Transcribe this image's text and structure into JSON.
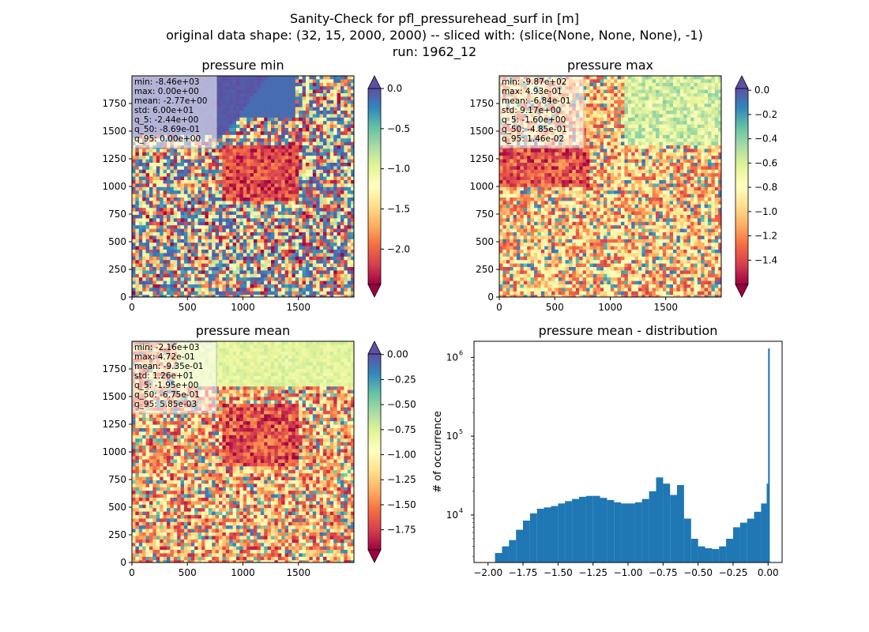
{
  "figure": {
    "title_lines": [
      "Sanity-Check for pfl_pressurehead_surf in [m]",
      "original data shape: (32, 15, 2000, 2000) -- sliced with: (slice(None, None, None), -1)",
      "run: 1962_12"
    ]
  },
  "chart_data": [
    {
      "type": "heatmap",
      "title": "pressure min",
      "xticks": [
        0,
        500,
        1000,
        1500
      ],
      "yticks": [
        0,
        250,
        500,
        750,
        1000,
        1250,
        1500,
        1750
      ],
      "xlim": [
        0,
        2000
      ],
      "ylim": [
        0,
        2000
      ],
      "colormap": "Spectral",
      "extend": "both",
      "clim": [
        -2.44,
        0.0
      ],
      "colorbar_ticks": [
        "0.0",
        "−0.5",
        "−1.0",
        "−1.5",
        "−2.0"
      ],
      "colorbar_tick_values": [
        0.0,
        -0.5,
        -1.0,
        -1.5,
        -2.0
      ],
      "stats": [
        "min: -8.46e+03",
        "max: 0.00e+00",
        "mean: -2.77e+00",
        "std: 6.00e+01",
        "q_5: -2.44e+00",
        "q_50: -8.69e-01",
        "q_95: 0.00e+00"
      ]
    },
    {
      "type": "heatmap",
      "title": "pressure max",
      "xticks": [
        0,
        500,
        1000,
        1500
      ],
      "yticks": [
        0,
        250,
        500,
        750,
        1000,
        1250,
        1500,
        1750
      ],
      "xlim": [
        0,
        2000
      ],
      "ylim": [
        0,
        2000
      ],
      "colormap": "Spectral",
      "extend": "both",
      "clim": [
        -1.6,
        0.0146
      ],
      "colorbar_ticks": [
        "0.0",
        "−0.2",
        "−0.4",
        "−0.6",
        "−0.8",
        "−1.0",
        "−1.2",
        "−1.4"
      ],
      "colorbar_tick_values": [
        0.0,
        -0.2,
        -0.4,
        -0.6,
        -0.8,
        -1.0,
        -1.2,
        -1.4
      ],
      "stats": [
        "min: -9.87e+02",
        "max: 4.93e-01",
        "mean: -6.84e-01",
        "std: 9.17e+00",
        "q_5: -1.60e+00",
        "q_50: -4.85e-01",
        "q_95: 1.46e-02"
      ]
    },
    {
      "type": "heatmap",
      "title": "pressure mean",
      "xticks": [
        0,
        500,
        1000,
        1500
      ],
      "yticks": [
        0,
        250,
        500,
        750,
        1000,
        1250,
        1500,
        1750
      ],
      "xlim": [
        0,
        2000
      ],
      "ylim": [
        0,
        2000
      ],
      "colormap": "Spectral",
      "extend": "both",
      "clim": [
        -1.95,
        0.00585
      ],
      "colorbar_ticks": [
        "0.00",
        "−0.25",
        "−0.50",
        "−0.75",
        "−1.00",
        "−1.25",
        "−1.50",
        "−1.75"
      ],
      "colorbar_tick_values": [
        0.0,
        -0.25,
        -0.5,
        -0.75,
        -1.0,
        -1.25,
        -1.5,
        -1.75
      ],
      "stats": [
        "min: -2.16e+03",
        "max: 4.72e-01",
        "mean: -9.35e-01",
        "std: 1.26e+01",
        "q_5: -1.95e+00",
        "q_50: -6.75e-01",
        "q_95: 5.85e-03"
      ]
    },
    {
      "type": "bar",
      "title": "pressure mean - distribution",
      "ylabel": "# of occurrence",
      "yscale": "log",
      "xlim": [
        -2.1,
        0.1
      ],
      "ylim": [
        2500,
        1600000
      ],
      "xticks": [
        -2.0,
        -1.75,
        -1.5,
        -1.25,
        -1.0,
        -0.75,
        -0.5,
        -0.25,
        0.0
      ],
      "xtick_labels": [
        "−2.00",
        "−1.75",
        "−1.50",
        "−1.25",
        "−1.00",
        "−0.75",
        "−0.50",
        "−0.25",
        "0.00"
      ],
      "yticks": [
        10000,
        100000,
        1000000
      ],
      "color": "#1f77b4",
      "x": [
        -1.95,
        -1.9,
        -1.85,
        -1.8,
        -1.75,
        -1.7,
        -1.65,
        -1.6,
        -1.55,
        -1.5,
        -1.45,
        -1.4,
        -1.35,
        -1.3,
        -1.25,
        -1.2,
        -1.15,
        -1.1,
        -1.05,
        -1.0,
        -0.95,
        -0.9,
        -0.85,
        -0.8,
        -0.75,
        -0.7,
        -0.65,
        -0.6,
        -0.55,
        -0.5,
        -0.45,
        -0.4,
        -0.35,
        -0.3,
        -0.25,
        -0.2,
        -0.15,
        -0.1,
        -0.05,
        -0.01,
        0.0
      ],
      "values": [
        3300,
        4000,
        4800,
        6500,
        8500,
        10500,
        12000,
        12500,
        13000,
        14000,
        15000,
        16000,
        17000,
        17500,
        17500,
        16500,
        15500,
        14500,
        14000,
        14000,
        14500,
        16000,
        20000,
        30000,
        25000,
        18000,
        24000,
        9000,
        5000,
        4000,
        3800,
        3700,
        4000,
        5000,
        7000,
        8000,
        9000,
        11000,
        14000,
        25000,
        1300000
      ]
    }
  ]
}
